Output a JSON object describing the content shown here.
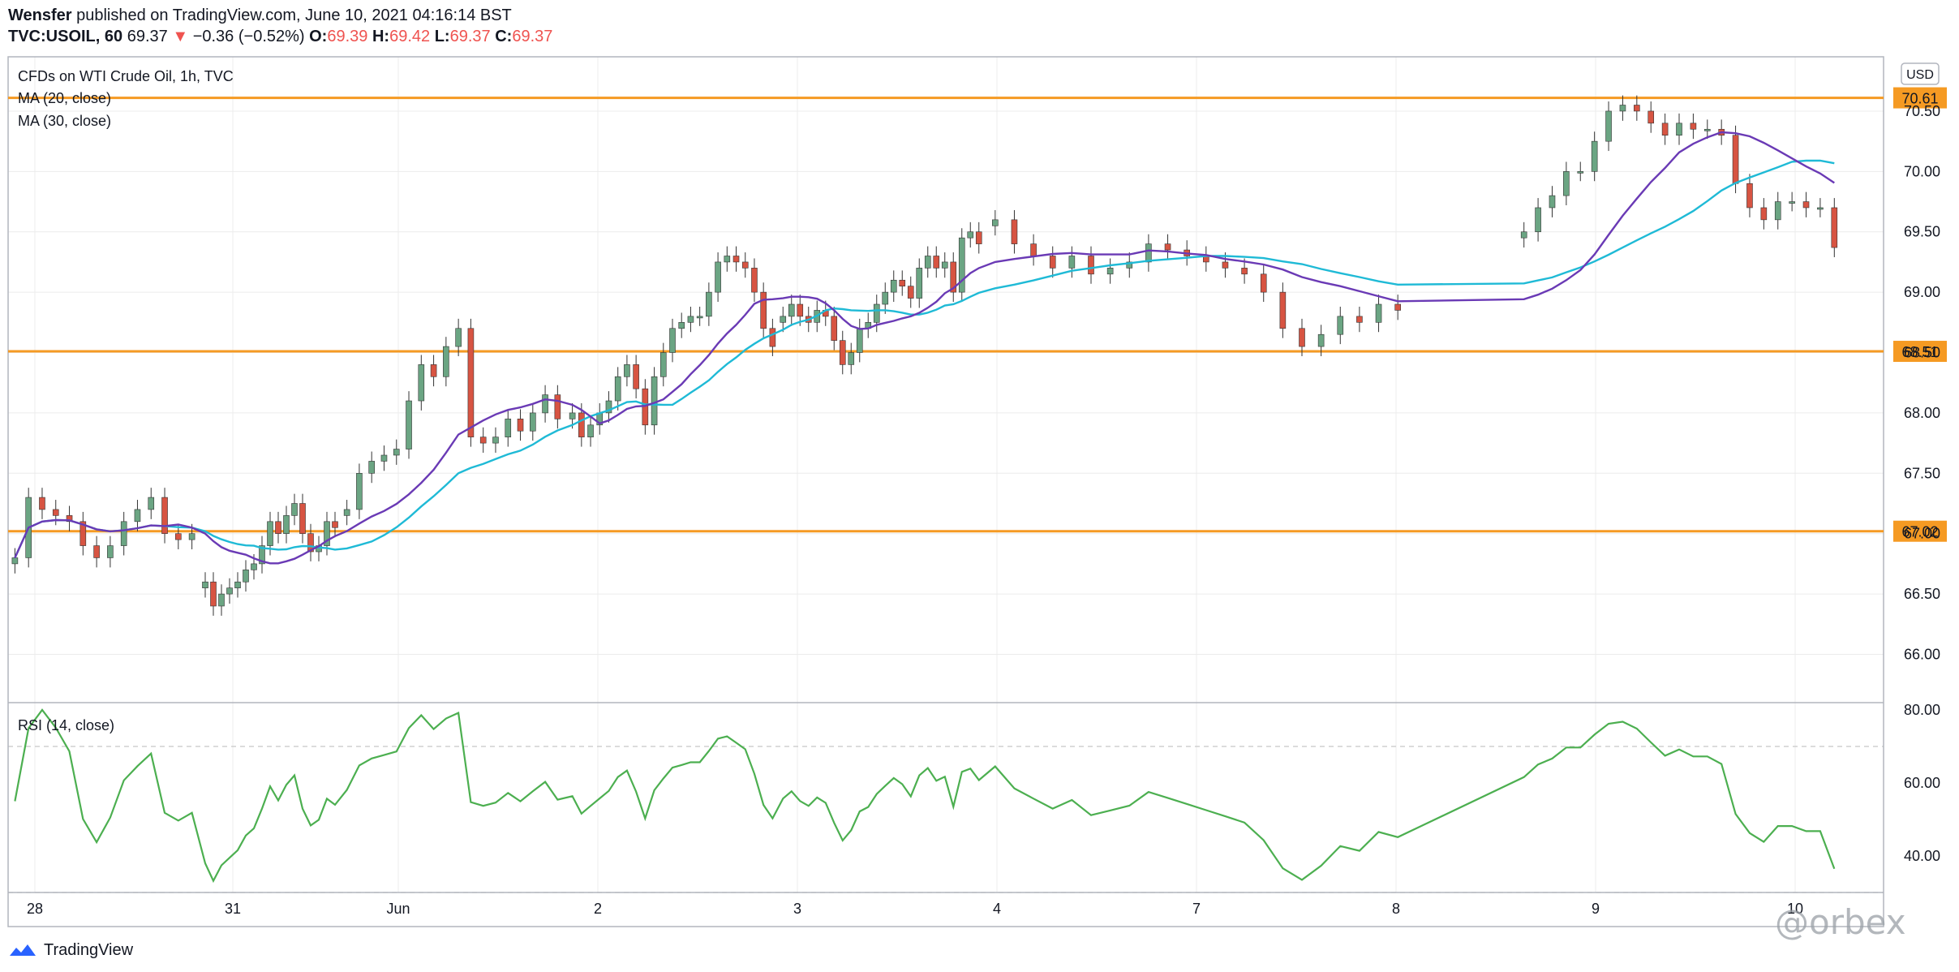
{
  "header": {
    "publisher": "Wensfer",
    "published_text": " published on TradingView.com, June 10, 2021 04:16:14 BST",
    "symbol": "TVC:USOIL, 60",
    "last": "69.37",
    "change": "−0.36 (−0.52%)",
    "o_label": "O:",
    "o_value": "69.39",
    "h_label": "H:",
    "h_value": "69.42",
    "l_label": "L:",
    "l_value": "69.37",
    "c_label": "C:",
    "c_value": "69.37"
  },
  "legend": {
    "main": "CFDs on WTI Crude Oil, 1h, TVC",
    "ma20": "MA (20, close)",
    "ma30": "MA (30, close)",
    "rsi": "RSI (14, close)"
  },
  "currency_badge": "USD",
  "footer": {
    "brand": "TradingView",
    "watermark": "@orbex"
  },
  "colors": {
    "up": "#6ba583",
    "down": "#d75442",
    "ma20": "#6a3ab5",
    "ma30": "#1fbad6",
    "level": "#f59a23",
    "rsi": "#4caf50",
    "grid": "#ececec"
  },
  "chart_data": {
    "type": "candlestick",
    "price_axis": {
      "min": 65.6,
      "max": 70.95,
      "ticks": [
        "66.00",
        "66.50",
        "67.00",
        "67.50",
        "68.00",
        "68.50",
        "69.00",
        "69.50",
        "70.00",
        "70.50"
      ]
    },
    "x_labels": [
      "28",
      "31",
      "Jun",
      "2",
      "3",
      "4",
      "7",
      "8",
      "9",
      "10"
    ],
    "levels": [
      {
        "value": 70.61,
        "label": "70.61"
      },
      {
        "value": 68.51,
        "label": "68.51"
      },
      {
        "value": 67.02,
        "label": "67.02"
      }
    ],
    "session_closes": {
      "28": [
        66.8,
        67.3,
        67.2,
        67.15,
        67.1,
        66.9,
        66.8,
        66.9,
        67.1,
        67.2,
        67.3,
        67.0,
        66.95,
        67.0
      ],
      "31": [
        66.6,
        66.4,
        66.5,
        66.55,
        66.6,
        66.7,
        66.75,
        66.9,
        67.1,
        67.0,
        67.15,
        67.25,
        67.0,
        66.85,
        66.9,
        67.1,
        67.05
      ],
      "Jun": [
        67.2,
        67.5,
        67.6,
        67.65,
        67.7,
        68.1,
        68.4,
        68.3,
        68.55,
        68.7,
        67.8,
        67.75,
        67.8,
        67.95,
        67.85,
        68.0,
        68.15,
        67.95
      ],
      "2": [
        68.0,
        67.8,
        67.9,
        68.0,
        68.1,
        68.3,
        68.4,
        68.2,
        67.9,
        68.3,
        68.5,
        68.7,
        68.75,
        68.8,
        68.8,
        69.0,
        69.25,
        69.3,
        69.25,
        69.2,
        69.0,
        68.7,
        68.55
      ],
      "3": [
        68.8,
        68.9,
        68.8,
        68.75,
        68.85,
        68.8,
        68.6,
        68.4,
        68.5,
        68.7,
        68.75,
        68.9,
        69.0,
        69.1,
        69.05,
        68.95,
        69.2,
        69.3,
        69.2,
        69.25,
        69.0,
        69.45,
        69.5,
        69.4
      ],
      "4": [
        69.6,
        69.4,
        69.3,
        69.2,
        69.3,
        69.15,
        69.2,
        69.25,
        69.4,
        69.35,
        69.3,
        69.25,
        69.2,
        69.15,
        69.0,
        68.7,
        68.55,
        68.65,
        68.8,
        68.75,
        68.9,
        68.85
      ],
      "8": [
        69.5,
        69.7,
        69.8,
        70.0,
        70.0,
        70.25,
        70.5,
        70.55,
        70.5,
        70.4,
        70.3,
        70.4,
        70.35,
        70.35,
        70.3,
        69.9,
        69.7,
        69.6,
        69.75,
        69.75,
        69.7,
        69.7,
        69.37
      ]
    },
    "rsi_axis": {
      "min": 30,
      "max": 82,
      "ticks": [
        "40.00",
        "60.00",
        "80.00"
      ],
      "levels": [
        30,
        70
      ]
    },
    "last_rsi": 36.5
  }
}
